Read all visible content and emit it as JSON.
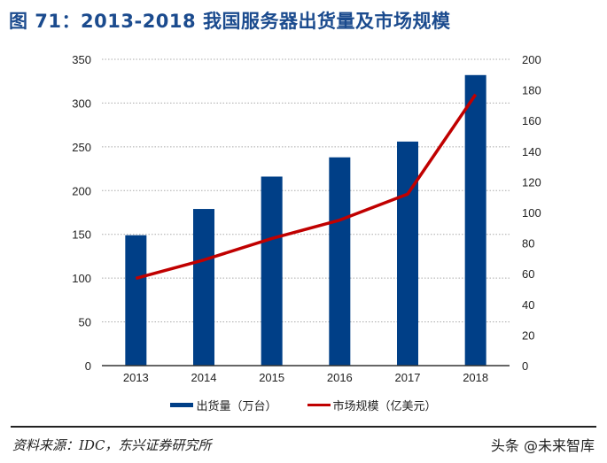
{
  "title": "图 71：2013-2018 我国服务器出货量及市场规模",
  "chart_data": {
    "type": "bar+line",
    "categories": [
      "2013",
      "2014",
      "2015",
      "2016",
      "2017",
      "2018"
    ],
    "series": [
      {
        "name": "出货量（万台）",
        "type": "bar",
        "axis": "left",
        "color": "#003f87",
        "values": [
          149,
          179,
          216,
          238,
          256,
          332
        ]
      },
      {
        "name": "市场规模（亿美元）",
        "type": "line",
        "axis": "right",
        "color": "#c00000",
        "values": [
          57,
          69,
          83,
          95,
          112,
          177
        ]
      }
    ],
    "y_left": {
      "range": [
        0,
        350
      ],
      "ticks": [
        "0",
        "50",
        "100",
        "150",
        "200",
        "250",
        "300",
        "350"
      ]
    },
    "y_right": {
      "range": [
        0,
        200
      ],
      "ticks": [
        "0",
        "20",
        "40",
        "60",
        "80",
        "100",
        "120",
        "140",
        "160",
        "180",
        "200"
      ]
    },
    "grid": true,
    "legend": "bottom"
  },
  "source": "资料来源：IDC，东兴证券研究所",
  "watermark": "头条 @未来智库"
}
